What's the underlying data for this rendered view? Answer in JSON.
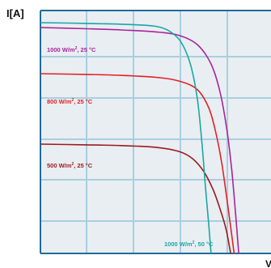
{
  "chart_data": {
    "type": "line",
    "title": "",
    "ylabel": "I[A]",
    "xlabel": "V",
    "xlim": [
      0,
      10
    ],
    "ylim": [
      0,
      10
    ],
    "grid": true,
    "colors": {
      "plot_background": "#e9eef2",
      "grid": "#a9cfe0",
      "frame": "#1f6c9a"
    },
    "series": [
      {
        "name": "1000 W/m², 25 °C",
        "label_main": "1000 W/m",
        "label_sup": "2",
        "label_tail": ", 25 °C",
        "color": "#a8259a",
        "points": [
          [
            0,
            9.3
          ],
          [
            2,
            9.25
          ],
          [
            3.5,
            9.2
          ],
          [
            5,
            9.12
          ],
          [
            6,
            8.98
          ],
          [
            6.8,
            8.6
          ],
          [
            7.4,
            7.8
          ],
          [
            7.8,
            6.6
          ],
          [
            8.1,
            5.0
          ],
          [
            8.3,
            3.4
          ],
          [
            8.45,
            1.8
          ],
          [
            8.6,
            0.0
          ]
        ]
      },
      {
        "name": "800 W/m², 25 °C",
        "label_main": "800 W/m",
        "label_sup": "2",
        "label_tail": ", 25 °C",
        "color": "#e02227",
        "points": [
          [
            0,
            7.4
          ],
          [
            2,
            7.37
          ],
          [
            3.5,
            7.33
          ],
          [
            5,
            7.25
          ],
          [
            6,
            7.1
          ],
          [
            6.8,
            6.75
          ],
          [
            7.3,
            6.0
          ],
          [
            7.6,
            5.0
          ],
          [
            7.85,
            3.8
          ],
          [
            8.05,
            2.5
          ],
          [
            8.25,
            1.1
          ],
          [
            8.4,
            0.0
          ]
        ]
      },
      {
        "name": "500 W/m², 25 °C",
        "label_main": "500 W/m",
        "label_sup": "2",
        "label_tail": ", 25 °C",
        "color": "#9b1b1e",
        "points": [
          [
            0,
            4.5
          ],
          [
            2,
            4.47
          ],
          [
            3.5,
            4.44
          ],
          [
            5,
            4.37
          ],
          [
            6,
            4.2
          ],
          [
            6.6,
            3.9
          ],
          [
            7.1,
            3.35
          ],
          [
            7.5,
            2.6
          ],
          [
            7.8,
            1.8
          ],
          [
            8.05,
            1.0
          ],
          [
            8.25,
            0.0
          ]
        ]
      },
      {
        "name": "1000 W/m², 50 °C",
        "label_main": "1000 W/m",
        "label_sup": "2",
        "label_tail": ", 50 °C",
        "color": "#1aa7a2",
        "points": [
          [
            0,
            9.5
          ],
          [
            2,
            9.47
          ],
          [
            4,
            9.42
          ],
          [
            5,
            9.35
          ],
          [
            5.6,
            9.15
          ],
          [
            6.1,
            8.7
          ],
          [
            6.5,
            7.8
          ],
          [
            6.8,
            6.4
          ],
          [
            7.0,
            4.6
          ],
          [
            7.15,
            2.8
          ],
          [
            7.3,
            1.2
          ],
          [
            7.4,
            0.0
          ]
        ]
      }
    ]
  }
}
